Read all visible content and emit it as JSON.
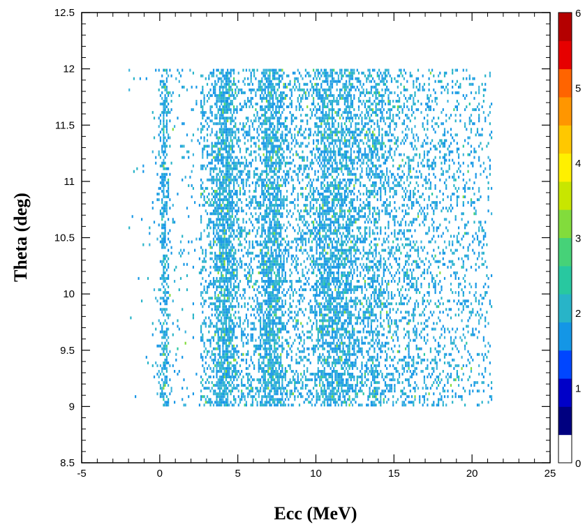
{
  "chart_data": {
    "type": "heatmap",
    "title": "",
    "xlabel": "Ecc (MeV)",
    "ylabel": "Theta (deg)",
    "xlim": [
      -5,
      25
    ],
    "ylim": [
      8.5,
      12.5
    ],
    "x_ticks": [
      "-5",
      "0",
      "5",
      "10",
      "15",
      "20",
      "25"
    ],
    "y_ticks": [
      "8.5",
      "9",
      "9.5",
      "10",
      "10.5",
      "11",
      "11.5",
      "12",
      "12.5"
    ],
    "colorbar": {
      "range": [
        0,
        6
      ],
      "labels": [
        "0",
        "1",
        "2",
        "3",
        "4",
        "5",
        "6"
      ],
      "colors": [
        "#ffffff",
        "#000080",
        "#0000c8",
        "#0046ff",
        "#1496e6",
        "#28b4c8",
        "#28c8a0",
        "#46d278",
        "#82dc3c",
        "#c8e600",
        "#fff000",
        "#ffc800",
        "#ff9600",
        "#ff6400",
        "#e60000",
        "#b40000"
      ]
    },
    "data_region": {
      "x_range": [
        -2,
        21.5
      ],
      "y_range": [
        9,
        12
      ],
      "typical_count": 1,
      "max_count_observed": 2
    },
    "bands": [
      {
        "x_center": 0.3,
        "width": 0.25,
        "density": 0.85
      },
      {
        "x_center": 4.2,
        "width": 0.6,
        "density": 0.75
      },
      {
        "x_center": 7.2,
        "width": 0.6,
        "density": 0.85
      },
      {
        "x_center": 10.7,
        "width": 0.8,
        "density": 0.45
      },
      {
        "x_center": 12.0,
        "width": 0.7,
        "density": 0.4
      },
      {
        "x_center": 13.8,
        "width": 0.5,
        "density": 0.3
      }
    ]
  }
}
